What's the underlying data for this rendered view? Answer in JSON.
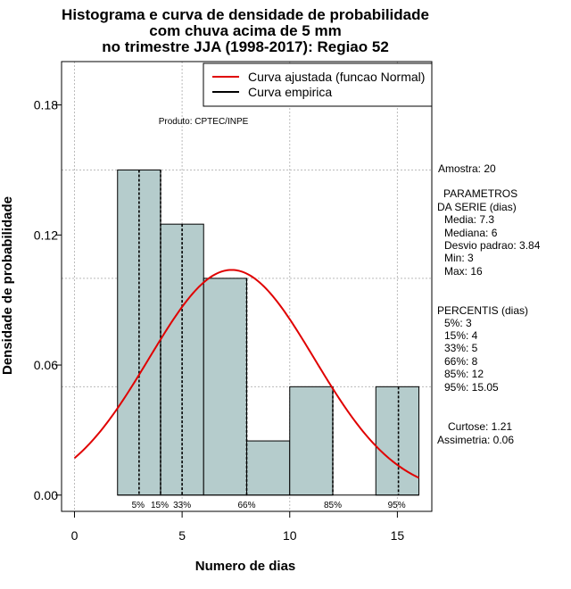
{
  "chart_data": {
    "type": "bar",
    "title_lines": [
      "Histograma e curva de densidade de probabilidade",
      "com chuva acima de 5 mm",
      "no trimestre JJA (1998-2017): Regiao 52"
    ],
    "xlabel": "Numero de dias",
    "ylabel": "Densidade de probabilidade",
    "xlim": [
      -0.6,
      16.6
    ],
    "ylim": [
      -0.0075,
      0.2
    ],
    "x_ticks": [
      0,
      5,
      10,
      15
    ],
    "y_ticks": [
      0.0,
      0.06,
      0.12,
      0.18
    ],
    "y_tick_labels": [
      "0.00",
      "0.06",
      "0.12",
      "0.18"
    ],
    "bins": [
      {
        "start": 2,
        "end": 4,
        "density": 0.15
      },
      {
        "start": 4,
        "end": 6,
        "density": 0.125
      },
      {
        "start": 6,
        "end": 8,
        "density": 0.1
      },
      {
        "start": 8,
        "end": 10,
        "density": 0.025
      },
      {
        "start": 10,
        "end": 12,
        "density": 0.05
      },
      {
        "start": 12,
        "end": 14,
        "density": 0.0
      },
      {
        "start": 14,
        "end": 16,
        "density": 0.05
      }
    ],
    "bar_color": "#b5cccc",
    "curve_color": "#e00000",
    "normal_fit": {
      "mean": 7.3,
      "sd": 3.84,
      "x_range": [
        0,
        16
      ]
    },
    "grid_y": [
      0.05,
      0.1,
      0.15
    ],
    "grid_x": [
      0,
      5,
      10,
      15
    ],
    "percentile_lines": [
      {
        "x": 3,
        "label": "5%"
      },
      {
        "x": 4,
        "label": "15%"
      },
      {
        "x": 5,
        "label": "33%"
      },
      {
        "x": 8,
        "label": "66%"
      },
      {
        "x": 12,
        "label": "85%"
      },
      {
        "x": 15.05,
        "label": "95%"
      }
    ],
    "legend": [
      {
        "label": "Curva ajustada (funcao Normal)",
        "color": "#e00000"
      },
      {
        "label": "Curva empirica",
        "color": "#000000"
      }
    ],
    "product_note": "Produto: CPTEC/INPE"
  },
  "side_panel": {
    "amostra": "Amostra: 20",
    "param_title_1": "PARAMETROS",
    "param_title_2": "DA SERIE (dias)",
    "media": "Media: 7.3",
    "mediana": "Mediana: 6",
    "desvio": "Desvio padrao: 3.84",
    "min": "Min: 3",
    "max": "Max: 16",
    "perc_title": "PERCENTIS (dias)",
    "p5": "5%: 3",
    "p15": "15%: 4",
    "p33": "33%: 5",
    "p66": "66%: 8",
    "p85": "85%: 12",
    "p95": "95%: 15.05",
    "curtose": "Curtose: 1.21",
    "assimetria": "Assimetria: 0.06"
  }
}
